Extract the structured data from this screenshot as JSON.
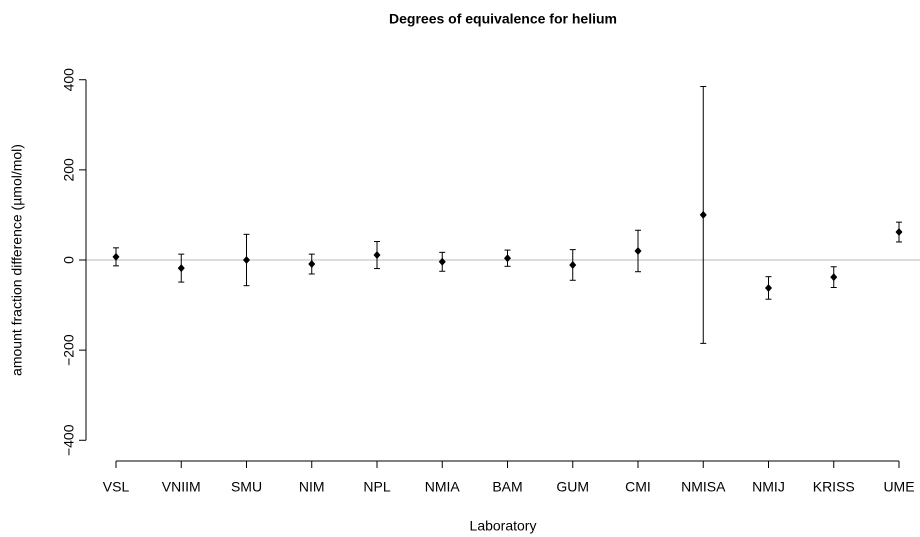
{
  "chart_data": {
    "type": "errorbar",
    "title": "Degrees of equivalence for helium",
    "x_label": "Laboratory",
    "y_label": "amount fraction difference (µmol/mol)",
    "categories": [
      "VSL",
      "VNIIM",
      "SMU",
      "NIM",
      "NPL",
      "NMIA",
      "BAM",
      "GUM",
      "CMI",
      "NMISA",
      "NMIJ",
      "KRISS",
      "UME"
    ],
    "values": [
      7,
      -18,
      0,
      -9,
      11,
      -4,
      4,
      -11,
      20,
      100,
      -62,
      -38,
      62
    ],
    "errors": [
      20,
      31,
      57,
      22,
      30,
      21,
      18,
      34,
      46,
      285,
      25,
      23,
      22
    ],
    "color": "#000000",
    "reference_line": 0,
    "reference_color": "#bbbbbb",
    "ylim": [
      -446,
      446
    ],
    "yticks": [
      {
        "value": -400,
        "label": "−400"
      },
      {
        "value": -200,
        "label": "−200"
      },
      0,
      200,
      400
    ]
  }
}
